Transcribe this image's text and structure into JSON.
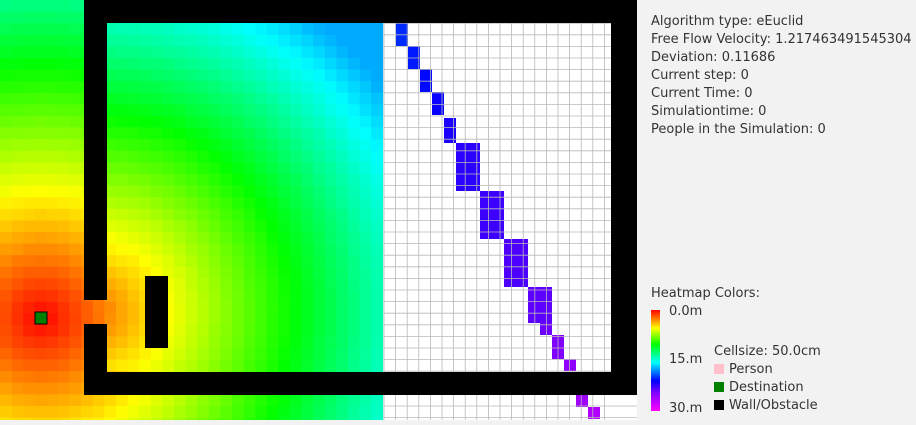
{
  "info": {
    "algorithm": "Algorithm type: eEuclid",
    "velocity": "Free Flow Velocity: 1.217463491545304",
    "deviation": "Deviation: 0.11686",
    "current_step": "Current step: 0",
    "current_time": "Current Time: 0",
    "simulation_time": "Simulationtime: 0",
    "people": "People in the Simulation: 0"
  },
  "legend": {
    "title": "Heatmap Colors:",
    "scale_top": "0.0m",
    "scale_mid": "15.m",
    "scale_bottom": "30.m",
    "cellsize": "Cellsize: 50.0cm",
    "person": "Person",
    "destination": "Destination",
    "wall": "Wall/Obstacle"
  },
  "colors": {
    "person": "#ffc0cb",
    "destination": "#008000",
    "wall": "#000000",
    "grid_line": "#b8b8b8",
    "panel_text": "#333333"
  },
  "icons": {
    "person": "person-swatch-icon",
    "destination": "destination-swatch-icon",
    "wall": "wall-swatch-icon"
  }
}
